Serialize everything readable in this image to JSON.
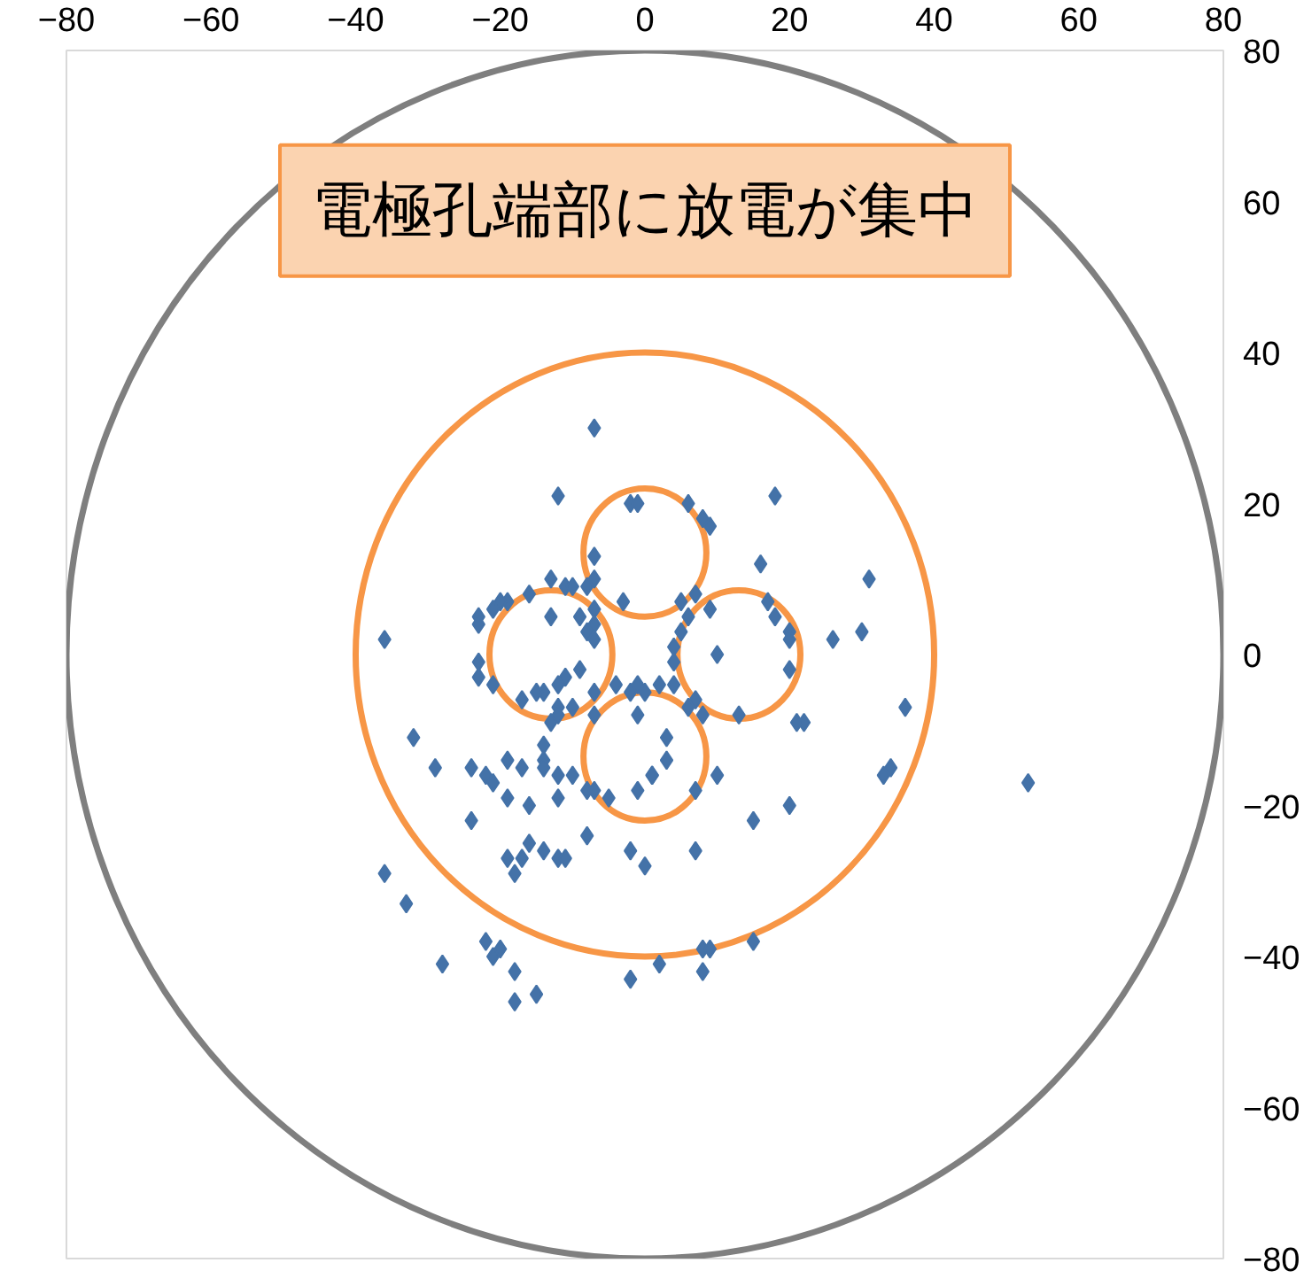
{
  "chart_data": {
    "type": "scatter",
    "marker": "diamond",
    "grid": false,
    "annotations": [
      "電極孔端部に放電が集中"
    ],
    "xlim": [
      -80,
      80
    ],
    "ylim": [
      -80,
      80
    ],
    "xticks": [
      -80,
      -60,
      -40,
      -20,
      0,
      20,
      40,
      60,
      80
    ],
    "yticks": [
      -80,
      -60,
      -40,
      -20,
      0,
      20,
      40,
      60,
      80
    ],
    "series": [
      {
        "color": "#4472a8",
        "x": [
          -7,
          -12,
          -2,
          -1,
          -7,
          -13,
          -11,
          -10,
          -8,
          -7,
          -16,
          -19,
          -20,
          -3,
          -7,
          -9,
          -13,
          -21,
          -23,
          -23,
          -7,
          -8,
          -7,
          -36,
          -23,
          -23,
          -21,
          -9,
          -11,
          -12,
          -14,
          -17,
          -15,
          -12,
          -10,
          -7,
          -4,
          -2,
          -1,
          0,
          -1,
          -12,
          -7,
          6,
          8,
          9,
          18,
          16,
          31,
          5,
          7,
          9,
          6,
          17,
          18,
          20,
          20,
          26,
          30,
          10,
          5,
          4,
          4,
          4,
          20,
          2,
          7,
          8,
          13,
          22,
          36,
          6,
          -32,
          -29,
          -24,
          -22,
          -21,
          -19,
          -17,
          -19,
          -16,
          -24,
          -14,
          -14,
          -14,
          -12,
          -12,
          -10,
          -13,
          -8,
          -7,
          -5,
          -1,
          1,
          -16,
          -19,
          -17,
          -14,
          -18,
          -12,
          -11,
          -8,
          -2,
          0,
          -36,
          -33,
          -28,
          -22,
          -21,
          -20,
          -18,
          -15,
          -18,
          -2,
          2,
          3,
          21,
          1,
          3,
          7,
          10,
          34,
          33,
          53,
          20,
          15,
          7,
          15,
          8,
          9,
          8
        ],
        "values": [
          30,
          21,
          20,
          20,
          13,
          10,
          9,
          9,
          9,
          10,
          8,
          7,
          7,
          7,
          6,
          5,
          5,
          6,
          5,
          4,
          4,
          3,
          2,
          2,
          -1,
          -3,
          -4,
          -2,
          -3,
          -4,
          -5,
          -6,
          -5,
          -7,
          -7,
          -5,
          -4,
          -5,
          -4,
          -5,
          -8,
          -8,
          -8,
          20,
          18,
          17,
          21,
          12,
          10,
          7,
          8,
          6,
          5,
          7,
          5,
          3,
          2,
          2,
          3,
          0,
          3,
          1,
          -1,
          -4,
          -2,
          -4,
          -6,
          -8,
          -8,
          -9,
          -7,
          -7,
          -11,
          -15,
          -15,
          -16,
          -17,
          -14,
          -15,
          -19,
          -20,
          -22,
          -12,
          -14,
          -15,
          -16,
          -19,
          -16,
          -9,
          -18,
          -18,
          -19,
          -18,
          -16,
          -25,
          -27,
          -27,
          -26,
          -29,
          -27,
          -27,
          -24,
          -26,
          -28,
          -29,
          -33,
          -41,
          -38,
          -40,
          -39,
          -42,
          -45,
          -46,
          -43,
          -41,
          -11,
          -9,
          -16,
          -14,
          -18,
          -16,
          -15,
          -16,
          -17,
          -20,
          -22,
          -26,
          -38,
          -39,
          -39,
          -42
        ]
      }
    ]
  }
}
